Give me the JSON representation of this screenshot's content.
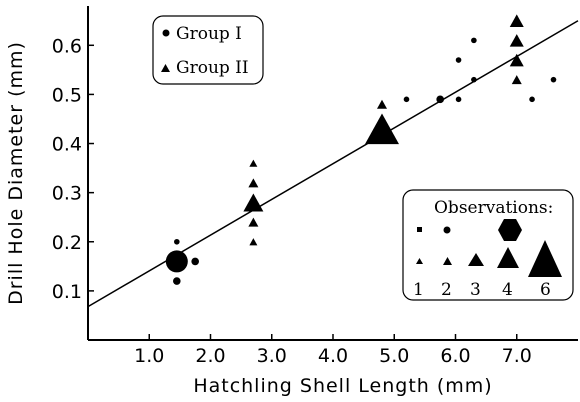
{
  "chart_data": {
    "type": "scatter",
    "xlabel": "Hatchling Shell Length (mm)",
    "ylabel": "Drill Hole Diameter (mm)",
    "xlim": [
      0,
      8.0
    ],
    "ylim": [
      0,
      0.68
    ],
    "x_ticks": [
      "1.0",
      "2.0",
      "3.0",
      "4.0",
      "5.0",
      "6.0",
      "7.0"
    ],
    "y_ticks": [
      "0.1",
      "0.2",
      "0.3",
      "0.4",
      "0.5",
      "0.6"
    ],
    "grid": false,
    "legend_groups": {
      "position": "top-left",
      "entries": [
        {
          "marker": "circle",
          "label": "Group I"
        },
        {
          "marker": "triangle",
          "label": "Group II"
        }
      ]
    },
    "legend_observations": {
      "position": "bottom-right",
      "title": "Observations:",
      "counts": [
        "1",
        "2",
        "3",
        "4",
        "6"
      ]
    },
    "fit_line": {
      "x": [
        0,
        8.0
      ],
      "y": [
        0.068,
        0.65
      ]
    },
    "series": [
      {
        "name": "Group I",
        "marker": "circle",
        "points": [
          {
            "x": 1.45,
            "y": 0.2,
            "n": 1
          },
          {
            "x": 1.45,
            "y": 0.16,
            "n": 4
          },
          {
            "x": 1.45,
            "y": 0.12,
            "n": 2
          },
          {
            "x": 1.75,
            "y": 0.16,
            "n": 2
          },
          {
            "x": 5.2,
            "y": 0.49,
            "n": 1
          },
          {
            "x": 5.75,
            "y": 0.49,
            "n": 2
          },
          {
            "x": 6.05,
            "y": 0.57,
            "n": 1
          },
          {
            "x": 6.05,
            "y": 0.49,
            "n": 1
          },
          {
            "x": 6.3,
            "y": 0.61,
            "n": 1
          },
          {
            "x": 6.3,
            "y": 0.53,
            "n": 1
          },
          {
            "x": 7.25,
            "y": 0.49,
            "n": 1
          },
          {
            "x": 7.6,
            "y": 0.53,
            "n": 1
          }
        ]
      },
      {
        "name": "Group II",
        "marker": "triangle",
        "points": [
          {
            "x": 2.7,
            "y": 0.36,
            "n": 1
          },
          {
            "x": 2.7,
            "y": 0.32,
            "n": 2
          },
          {
            "x": 2.7,
            "y": 0.28,
            "n": 4
          },
          {
            "x": 2.7,
            "y": 0.24,
            "n": 2
          },
          {
            "x": 2.7,
            "y": 0.2,
            "n": 1
          },
          {
            "x": 4.8,
            "y": 0.48,
            "n": 2
          },
          {
            "x": 4.8,
            "y": 0.43,
            "n": 6
          },
          {
            "x": 7.0,
            "y": 0.65,
            "n": 3
          },
          {
            "x": 7.0,
            "y": 0.61,
            "n": 3
          },
          {
            "x": 7.0,
            "y": 0.57,
            "n": 3
          },
          {
            "x": 7.0,
            "y": 0.53,
            "n": 2
          }
        ]
      }
    ]
  }
}
